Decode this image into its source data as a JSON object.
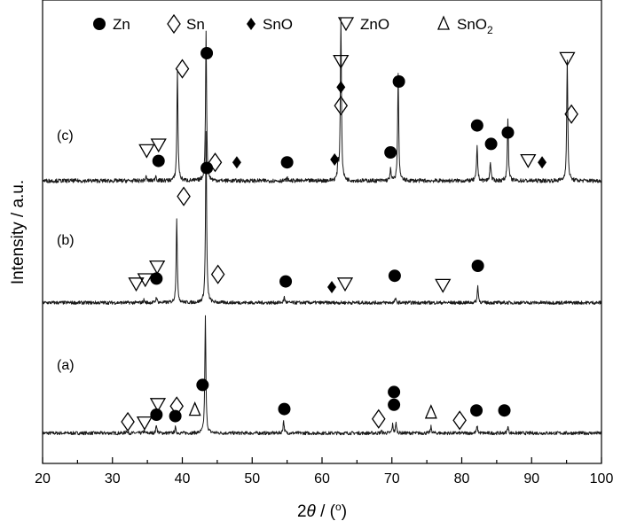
{
  "chart_data": {
    "type": "line",
    "xlabel_prefix": "2",
    "xlabel_symbol": "θ",
    "xlabel_suffix": " / (",
    "xlabel_degree": "o",
    "xlabel_close": ")",
    "ylabel": "Intensity / a.u.",
    "xlim": [
      20,
      100
    ],
    "x_ticks": [
      "20",
      "30",
      "40",
      "50",
      "60",
      "70",
      "80",
      "90",
      "100"
    ],
    "y_ticks_shown": false,
    "grid": false,
    "legend_position": "top",
    "legend": [
      {
        "name": "Zn",
        "marker": "filled-circle"
      },
      {
        "name": "Sn",
        "marker": "open-diamond"
      },
      {
        "name": "SnO",
        "marker": "filled-diamond"
      },
      {
        "name": "ZnO",
        "marker": "open-down-triangle"
      },
      {
        "name": "SnO",
        "subscript": "2",
        "marker": "open-up-triangle"
      }
    ],
    "series": [
      {
        "name": "(a)",
        "baseline": 0.02,
        "noise": 0.012,
        "peaks": [
          {
            "x": 32.0,
            "h": 0.02
          },
          {
            "x": 34.5,
            "h": 0.015
          },
          {
            "x": 36.3,
            "h": 0.06
          },
          {
            "x": 39.0,
            "h": 0.04
          },
          {
            "x": 43.3,
            "h": 0.82
          },
          {
            "x": 54.5,
            "h": 0.09
          },
          {
            "x": 68.5,
            "h": 0.015
          },
          {
            "x": 70.1,
            "h": 0.06
          },
          {
            "x": 70.6,
            "h": 0.07
          },
          {
            "x": 75.6,
            "h": 0.045
          },
          {
            "x": 82.2,
            "h": 0.05
          },
          {
            "x": 86.6,
            "h": 0.05
          }
        ],
        "markers": [
          {
            "phase": "Sn",
            "x": 32.2,
            "y": 0.1
          },
          {
            "phase": "ZnO",
            "x": 34.6,
            "y": 0.09
          },
          {
            "phase": "Zn",
            "x": 36.3,
            "y": 0.15
          },
          {
            "phase": "ZnO",
            "x": 36.5,
            "y": 0.22
          },
          {
            "phase": "Zn",
            "x": 39.0,
            "y": 0.14
          },
          {
            "phase": "Sn",
            "x": 39.2,
            "y": 0.21
          },
          {
            "phase": "SnO2",
            "x": 41.8,
            "y": 0.19
          },
          {
            "phase": "Zn",
            "x": 42.9,
            "y": 0.36
          },
          {
            "phase": "Zn",
            "x": 54.6,
            "y": 0.19
          },
          {
            "phase": "Sn",
            "x": 68.1,
            "y": 0.12
          },
          {
            "phase": "Zn",
            "x": 70.3,
            "y": 0.22
          },
          {
            "phase": "Zn",
            "x": 70.3,
            "y": 0.31
          },
          {
            "phase": "SnO2",
            "x": 75.6,
            "y": 0.17
          },
          {
            "phase": "Sn",
            "x": 79.7,
            "y": 0.11
          },
          {
            "phase": "Zn",
            "x": 82.1,
            "y": 0.18
          },
          {
            "phase": "Zn",
            "x": 86.1,
            "y": 0.18
          }
        ]
      },
      {
        "name": "(b)",
        "baseline": 0.04,
        "noise": 0.012,
        "peaks": [
          {
            "x": 34.5,
            "h": 0.02
          },
          {
            "x": 36.3,
            "h": 0.04
          },
          {
            "x": 39.2,
            "h": 0.6
          },
          {
            "x": 43.4,
            "h": 1.2
          },
          {
            "x": 54.6,
            "h": 0.04
          },
          {
            "x": 70.5,
            "h": 0.03
          },
          {
            "x": 82.3,
            "h": 0.12
          }
        ],
        "markers": [
          {
            "phase": "ZnO",
            "x": 33.4,
            "y": 0.17
          },
          {
            "phase": "ZnO",
            "x": 34.7,
            "y": 0.2
          },
          {
            "phase": "Zn",
            "x": 36.3,
            "y": 0.21
          },
          {
            "phase": "ZnO",
            "x": 36.4,
            "y": 0.29
          },
          {
            "phase": "Sn",
            "x": 40.2,
            "y": 0.79
          },
          {
            "phase": "Zn",
            "x": 43.5,
            "y": 0.99
          },
          {
            "phase": "Sn",
            "x": 45.1,
            "y": 0.24
          },
          {
            "phase": "Zn",
            "x": 54.8,
            "y": 0.19
          },
          {
            "phase": "SnO",
            "x": 61.4,
            "y": 0.15
          },
          {
            "phase": "ZnO",
            "x": 63.3,
            "y": 0.17
          },
          {
            "phase": "Zn",
            "x": 70.4,
            "y": 0.23
          },
          {
            "phase": "ZnO",
            "x": 77.3,
            "y": 0.16
          },
          {
            "phase": "Zn",
            "x": 82.3,
            "y": 0.3
          }
        ]
      },
      {
        "name": "(c)",
        "baseline": 0.05,
        "noise": 0.014,
        "peaks": [
          {
            "x": 34.8,
            "h": 0.03
          },
          {
            "x": 36.2,
            "h": 0.04
          },
          {
            "x": 39.3,
            "h": 0.78
          },
          {
            "x": 43.4,
            "h": 1.05
          },
          {
            "x": 55.0,
            "h": 0.02
          },
          {
            "x": 62.3,
            "h": 0.12
          },
          {
            "x": 62.7,
            "h": 1.15
          },
          {
            "x": 69.8,
            "h": 0.08
          },
          {
            "x": 70.9,
            "h": 0.75
          },
          {
            "x": 82.2,
            "h": 0.25
          },
          {
            "x": 84.1,
            "h": 0.14
          },
          {
            "x": 86.6,
            "h": 0.45
          },
          {
            "x": 95.1,
            "h": 0.85
          }
        ],
        "markers": [
          {
            "phase": "ZnO",
            "x": 34.9,
            "y": 0.26
          },
          {
            "phase": "ZnO",
            "x": 36.6,
            "y": 0.3
          },
          {
            "phase": "Zn",
            "x": 36.6,
            "y": 0.19
          },
          {
            "phase": "Sn",
            "x": 40.0,
            "y": 0.84
          },
          {
            "phase": "Zn",
            "x": 43.5,
            "y": 0.95
          },
          {
            "phase": "Sn",
            "x": 44.7,
            "y": 0.18
          },
          {
            "phase": "SnO",
            "x": 47.8,
            "y": 0.18
          },
          {
            "phase": "Zn",
            "x": 55.0,
            "y": 0.18
          },
          {
            "phase": "SnO",
            "x": 61.8,
            "y": 0.2
          },
          {
            "phase": "Sn",
            "x": 62.7,
            "y": 0.58
          },
          {
            "phase": "SnO",
            "x": 62.7,
            "y": 0.71
          },
          {
            "phase": "ZnO",
            "x": 62.7,
            "y": 0.89
          },
          {
            "phase": "Zn",
            "x": 69.8,
            "y": 0.25
          },
          {
            "phase": "Zn",
            "x": 71.0,
            "y": 0.75
          },
          {
            "phase": "Zn",
            "x": 82.2,
            "y": 0.44
          },
          {
            "phase": "Zn",
            "x": 84.2,
            "y": 0.31
          },
          {
            "phase": "Zn",
            "x": 86.6,
            "y": 0.39
          },
          {
            "phase": "ZnO",
            "x": 89.5,
            "y": 0.19
          },
          {
            "phase": "SnO",
            "x": 91.5,
            "y": 0.18
          },
          {
            "phase": "ZnO",
            "x": 95.1,
            "y": 0.91
          },
          {
            "phase": "Sn",
            "x": 95.7,
            "y": 0.52
          }
        ]
      }
    ]
  }
}
